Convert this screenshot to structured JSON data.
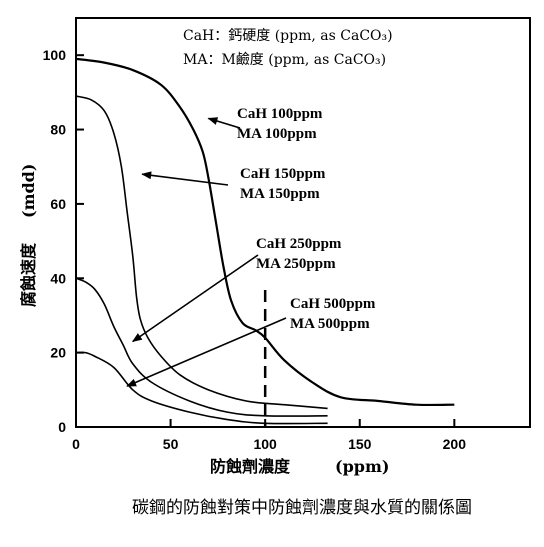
{
  "caption": "碳鋼的防蝕對策中防蝕劑濃度與水質的關係圖",
  "chart_data": {
    "type": "line",
    "xlabel": "防蝕劑濃度",
    "xunit": "(ppm)",
    "ylabel": "腐蝕速度",
    "yunit": "(mdd)",
    "xlim": [
      0,
      240
    ],
    "ylim": [
      0,
      110
    ],
    "xticks": [
      0,
      50,
      100,
      150,
      200
    ],
    "yticks": [
      0,
      20,
      40,
      60,
      80,
      100
    ],
    "grid": false,
    "legend_notes": [
      "CaH：鈣硬度  (ppm, as CaCO₃)",
      "MA：M鹼度  (ppm, as CaCO₃)"
    ],
    "series": [
      {
        "label_lines": [
          "CaH 100ppm",
          "MA  100ppm"
        ],
        "x": [
          0,
          15,
          30,
          45,
          55,
          62,
          67,
          70,
          74,
          78,
          82,
          88,
          95,
          100,
          110,
          125,
          140,
          160,
          180,
          200
        ],
        "y": [
          99,
          98,
          96,
          92,
          86,
          80,
          74,
          67,
          55,
          43,
          34,
          28,
          26,
          24,
          18,
          12,
          8,
          7,
          6,
          6
        ]
      },
      {
        "label_lines": [
          "CaH  150ppm",
          "MA   150ppm"
        ],
        "x": [
          0,
          8,
          15,
          20,
          24,
          27,
          30,
          32,
          34,
          38,
          45,
          55,
          70,
          90,
          110,
          133
        ],
        "y": [
          89,
          88,
          85,
          79,
          70,
          58,
          46,
          35,
          29,
          24,
          19,
          14,
          10,
          7,
          6,
          5
        ]
      },
      {
        "label_lines": [
          "CaH 250ppm",
          "MA   250ppm"
        ],
        "x": [
          0,
          5,
          10,
          15,
          20,
          25,
          30,
          40,
          60,
          80,
          100,
          133
        ],
        "y": [
          40,
          39,
          37,
          33,
          27,
          22,
          17,
          12,
          7,
          4,
          3,
          3
        ]
      },
      {
        "label_lines": [
          "CaH 500ppm",
          "MA   500ppm"
        ],
        "x": [
          0,
          5,
          10,
          20,
          30,
          40,
          60,
          80,
          100,
          133
        ],
        "y": [
          20,
          20,
          19,
          16,
          10,
          7,
          4,
          2,
          1,
          1
        ]
      }
    ],
    "reference_line": {
      "x": 100,
      "style": "dashed"
    }
  }
}
